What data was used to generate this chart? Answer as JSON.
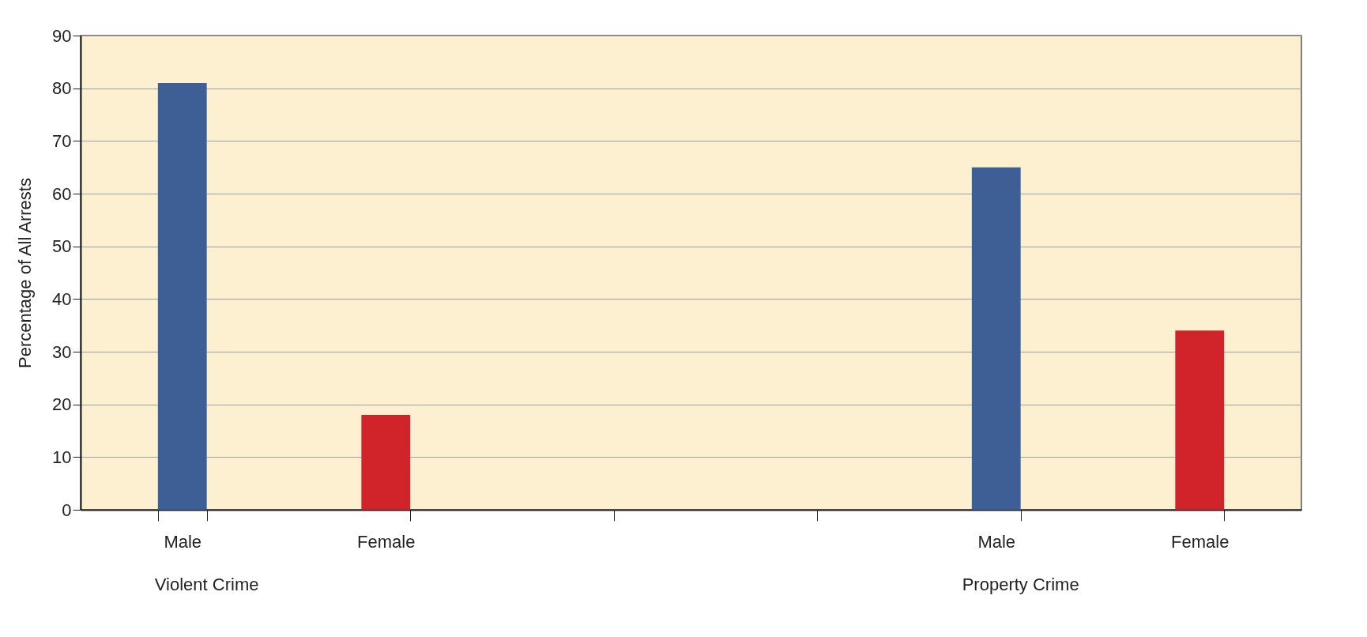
{
  "chart_data": {
    "type": "bar",
    "ylabel": "Percentage of All Arrests",
    "categories": [
      "Male",
      "Female",
      null,
      null,
      "Male",
      "Female"
    ],
    "values": [
      81,
      18,
      null,
      null,
      65,
      34
    ],
    "colors": [
      "#3d5f95",
      "#d0232a",
      null,
      null,
      "#3d5f95",
      "#d0232a"
    ],
    "ylim": [
      0,
      90
    ],
    "yticks": [
      0,
      10,
      20,
      30,
      40,
      50,
      60,
      70,
      80,
      90
    ],
    "grid": "y",
    "annotations": [
      "Violent Crime",
      "Property Crime"
    ]
  }
}
